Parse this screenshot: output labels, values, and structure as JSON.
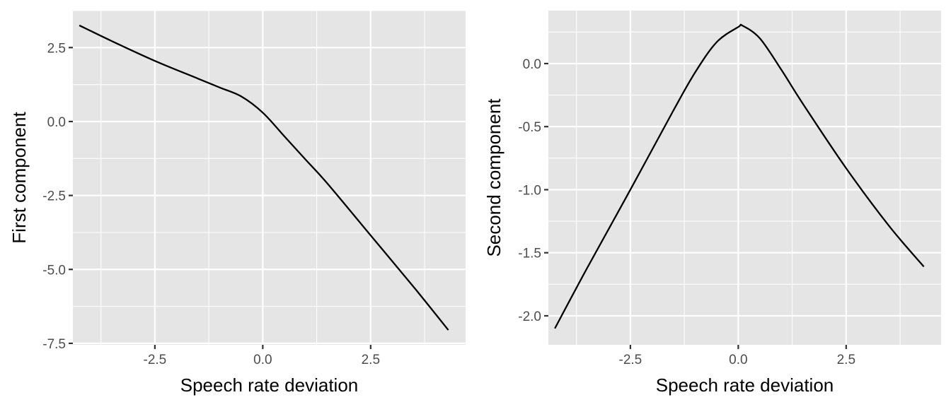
{
  "chart_data": [
    {
      "type": "line",
      "xlabel": "Speech rate deviation",
      "ylabel": "First component",
      "xlim": [
        -4.4,
        4.7
      ],
      "ylim": [
        -7.55,
        3.75
      ],
      "x_ticks": [
        -2.5,
        0.0,
        2.5
      ],
      "x_tick_labels": [
        "-2.5",
        "0.0",
        "2.5"
      ],
      "y_ticks": [
        2.5,
        0.0,
        -2.5,
        -5.0,
        -7.5
      ],
      "y_tick_labels": [
        "2.5",
        "0.0",
        "-2.5",
        "-5.0",
        "-7.5"
      ],
      "grid": true,
      "legend": "none",
      "series": [
        {
          "x": [
            -4.25,
            -3.5,
            -2.5,
            -1.5,
            -1.0,
            -0.5,
            0.0,
            0.5,
            1.0,
            1.5,
            2.5,
            3.5,
            4.3
          ],
          "y": [
            3.25,
            2.72,
            2.05,
            1.45,
            1.15,
            0.85,
            0.3,
            -0.5,
            -1.3,
            -2.1,
            -3.85,
            -5.6,
            -7.05
          ]
        }
      ]
    },
    {
      "type": "line",
      "xlabel": "Speech rate deviation",
      "ylabel": "Second component",
      "xlim": [
        -4.4,
        4.7
      ],
      "ylim": [
        -2.23,
        0.42
      ],
      "x_ticks": [
        -2.5,
        0.0,
        2.5
      ],
      "x_tick_labels": [
        "-2.5",
        "0.0",
        "2.5"
      ],
      "y_ticks": [
        0.0,
        -0.5,
        -1.0,
        -1.5,
        -2.0
      ],
      "y_tick_labels": [
        "0.0",
        "-0.5",
        "-1.0",
        "-1.5",
        "-2.0"
      ],
      "grid": true,
      "legend": "none",
      "series": [
        {
          "x": [
            -4.25,
            -3.5,
            -2.5,
            -1.5,
            -1.0,
            -0.5,
            0.0,
            0.1,
            0.5,
            1.0,
            1.5,
            2.5,
            3.5,
            4.3
          ],
          "y": [
            -2.1,
            -1.62,
            -1.0,
            -0.37,
            -0.07,
            0.17,
            0.29,
            0.3,
            0.2,
            -0.05,
            -0.32,
            -0.83,
            -1.29,
            -1.61
          ]
        }
      ]
    }
  ]
}
